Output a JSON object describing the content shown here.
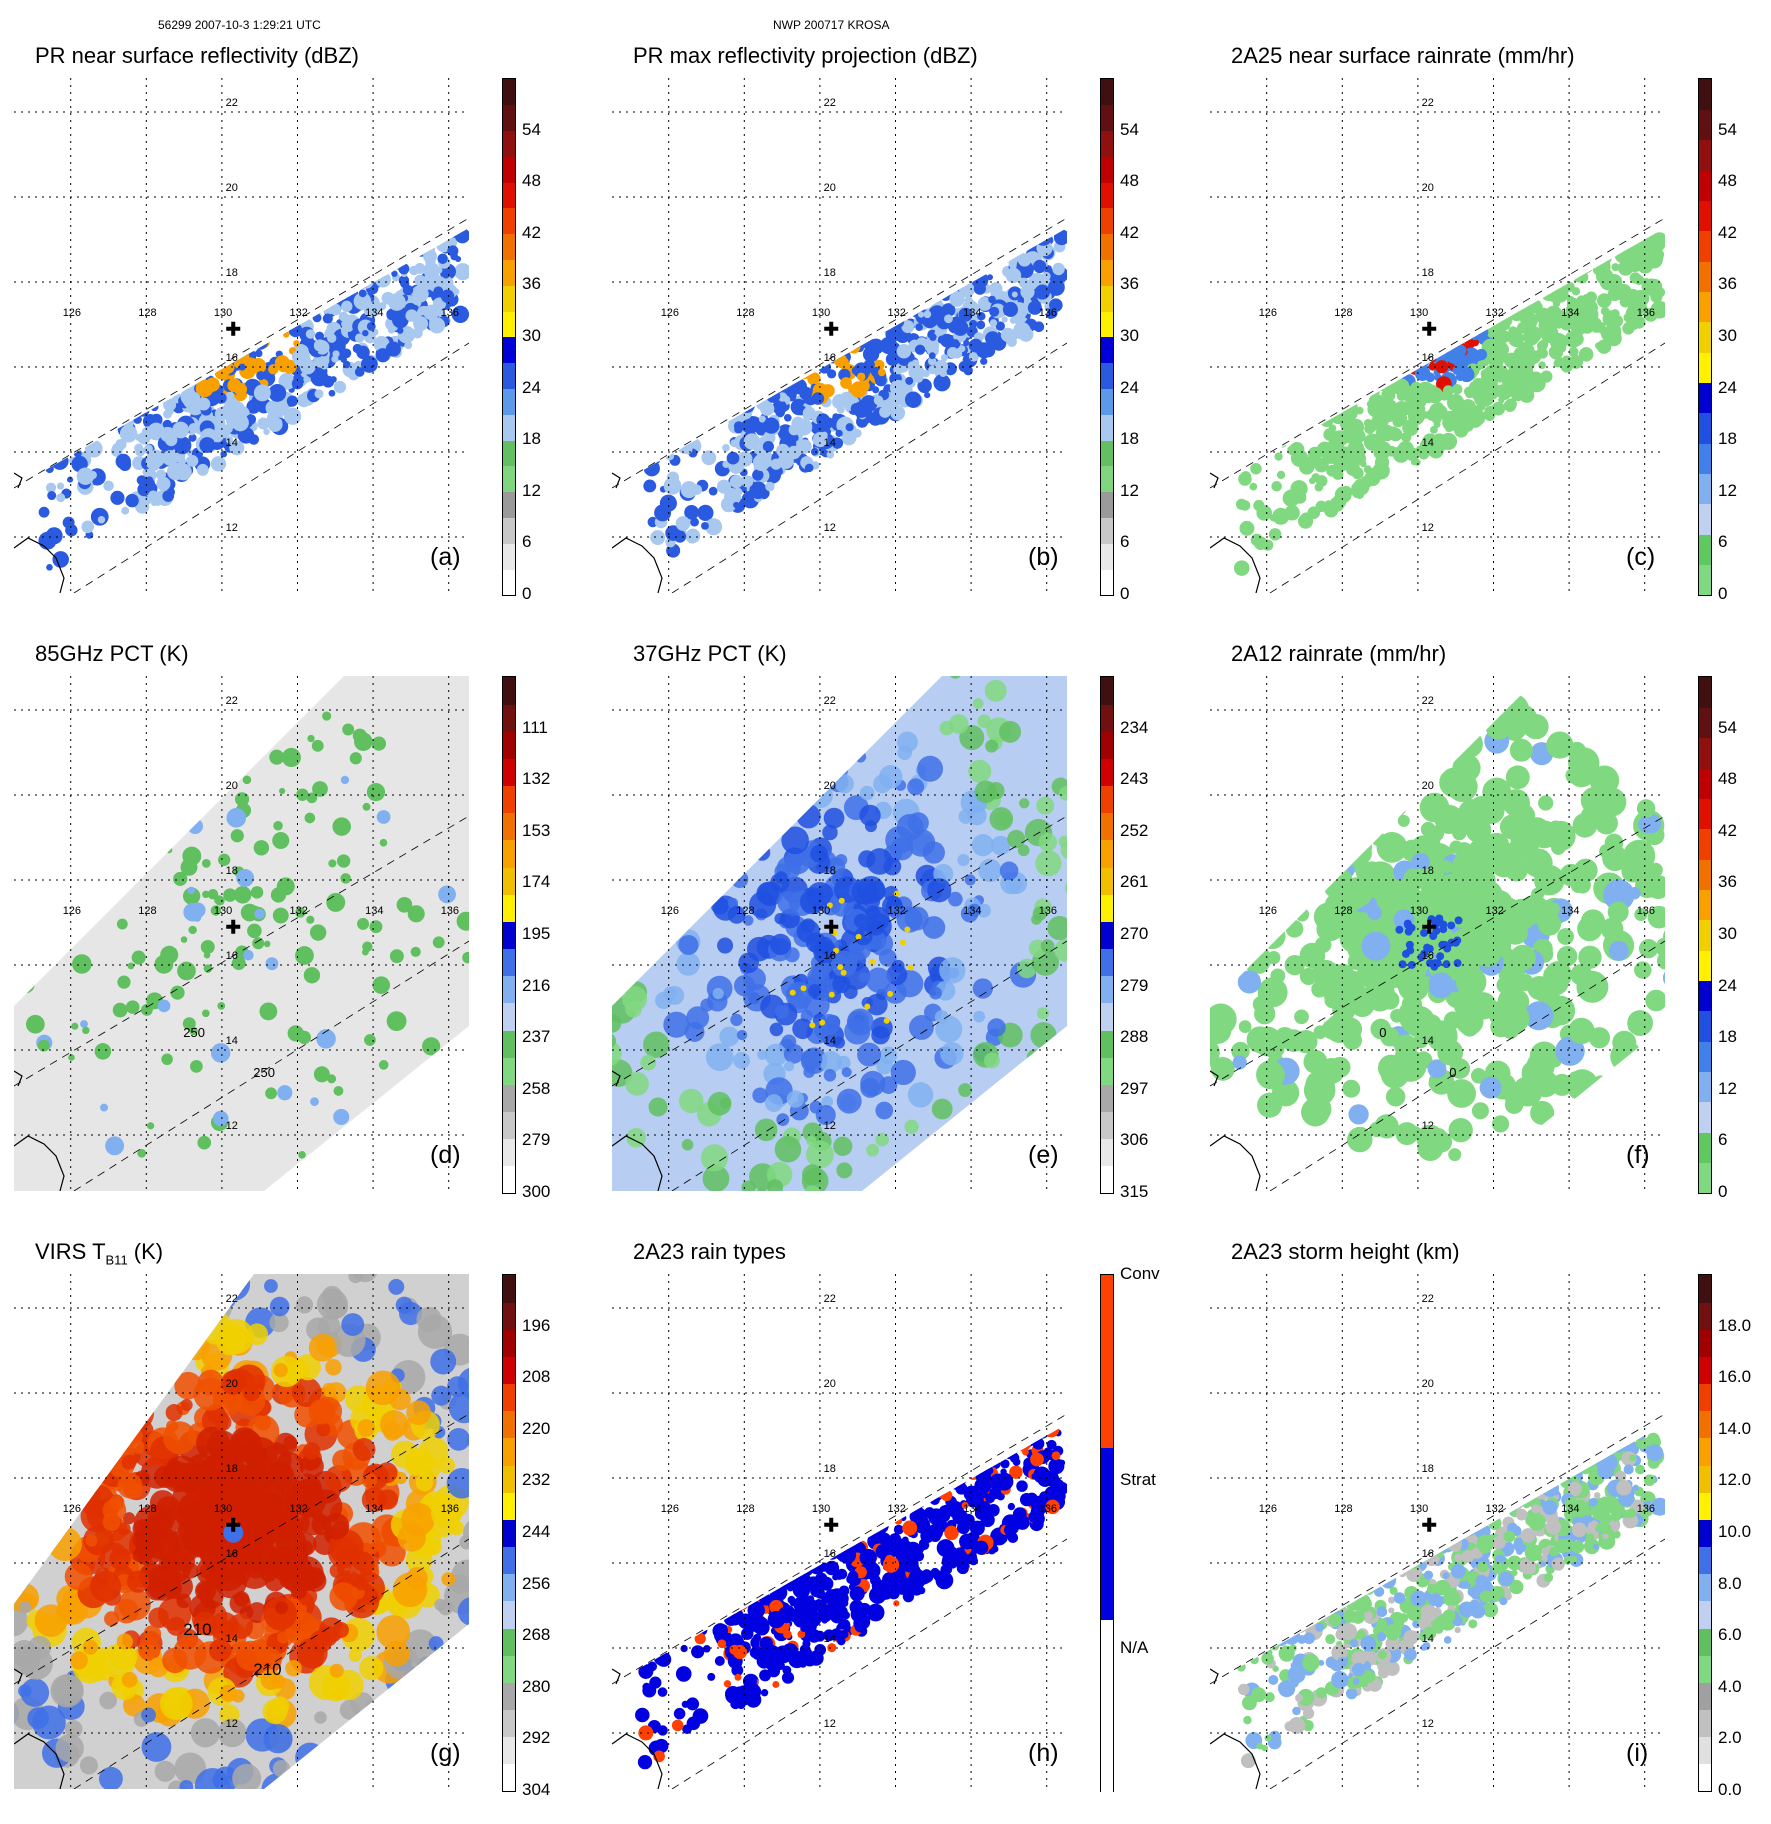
{
  "header": {
    "left": "56299 2007-10-3 1:29:21 UTC",
    "center": "NWP 200717 KROSA"
  },
  "lon_labels": [
    "126",
    "128",
    "130",
    "132",
    "134",
    "136"
  ],
  "lat_labels": [
    "22",
    "20",
    "18",
    "16",
    "14",
    "12"
  ],
  "panels": [
    {
      "key": "a",
      "title": "PR near surface reflectivity (dBZ)",
      "label": "(a)",
      "scale": "dbz",
      "swath": "narrow",
      "ticks": [
        "0",
        "6",
        "12",
        "18",
        "24",
        "30",
        "36",
        "42",
        "48",
        "54"
      ]
    },
    {
      "key": "b",
      "title": "PR max reflectivity projection (dBZ)",
      "label": "(b)",
      "scale": "dbz",
      "swath": "narrow",
      "ticks": [
        "0",
        "6",
        "12",
        "18",
        "24",
        "30",
        "36",
        "42",
        "48",
        "54"
      ]
    },
    {
      "key": "c",
      "title": "2A25 near surface rainrate (mm/hr)",
      "label": "(c)",
      "scale": "rain",
      "swath": "narrow",
      "ticks": [
        "0",
        "6",
        "12",
        "18",
        "24",
        "30",
        "36",
        "42",
        "48",
        "54"
      ]
    },
    {
      "key": "d",
      "title": "85GHz PCT (K)",
      "label": "(d)",
      "scale": "pct85",
      "swath": "wide",
      "ticks": [
        "300",
        "279",
        "258",
        "237",
        "216",
        "195",
        "174",
        "153",
        "132",
        "111"
      ],
      "contours": [
        "250",
        "250"
      ]
    },
    {
      "key": "e",
      "title": "37GHz PCT (K)",
      "label": "(e)",
      "scale": "pct37",
      "swath": "wide",
      "ticks": [
        "315",
        "306",
        "297",
        "288",
        "279",
        "270",
        "261",
        "252",
        "243",
        "234"
      ]
    },
    {
      "key": "f",
      "title": "2A12 rainrate (mm/hr)",
      "label": "(f)",
      "scale": "rain",
      "swath": "wide",
      "ticks": [
        "0",
        "6",
        "12",
        "18",
        "24",
        "30",
        "36",
        "42",
        "48",
        "54"
      ],
      "contours": [
        "0",
        "0"
      ]
    },
    {
      "key": "g",
      "title_main": "VIRS T",
      "title_sub": "B11",
      "title_unit": " (K)",
      "label": "(g)",
      "scale": "virs",
      "swath": "full",
      "ticks": [
        "304",
        "292",
        "280",
        "268",
        "256",
        "244",
        "232",
        "220",
        "208",
        "196"
      ],
      "contours": [
        "210",
        "210"
      ]
    },
    {
      "key": "h",
      "title": "2A23 rain types",
      "label": "(h)",
      "scale": "types",
      "swath": "narrow",
      "ticks": [
        "N/A",
        "Strat",
        "Conv"
      ]
    },
    {
      "key": "i",
      "title": "2A23 storm height (km)",
      "label": "(i)",
      "scale": "height",
      "swath": "narrow",
      "ticks": [
        "0.0",
        "2.0",
        "4.0",
        "6.0",
        "8.0",
        "10.0",
        "12.0",
        "14.0",
        "16.0",
        "18.0"
      ]
    }
  ],
  "colors": {
    "dbz": [
      "#ffffff",
      "#e8e8e8",
      "#c8c8c8",
      "#9a9a9a",
      "#7fd67f",
      "#62c062",
      "#a8c8f0",
      "#5a9ae8",
      "#2a5ae0",
      "#0000d8",
      "#fff000",
      "#f0d000",
      "#f8a000",
      "#f07000",
      "#f04000",
      "#e01000",
      "#c00000",
      "#901010",
      "#601010",
      "#401010"
    ],
    "rain": [
      "#80d880",
      "#60c860",
      "#c0d0f0",
      "#80b0f0",
      "#4080e8",
      "#2050e0",
      "#0000d0",
      "#fff000",
      "#f0d000",
      "#f8a000",
      "#f07000",
      "#f04000",
      "#e01000",
      "#c00000",
      "#901010",
      "#601010",
      "#401010"
    ],
    "pct85": [
      "#ffffff",
      "#e8e8e8",
      "#c8c8c8",
      "#a8a8a8",
      "#80d880",
      "#60c060",
      "#c0d0f0",
      "#80b0f0",
      "#4070e8",
      "#0000d0",
      "#fff000",
      "#f0c000",
      "#f8a000",
      "#f07000",
      "#f04000",
      "#d00000",
      "#a00000",
      "#701010",
      "#401010"
    ],
    "pct37": [
      "#ffffff",
      "#e8e8e8",
      "#c8c8c8",
      "#a8a8a8",
      "#80d880",
      "#60c060",
      "#c0d0f0",
      "#80b0f0",
      "#4070e8",
      "#0000d0",
      "#fff000",
      "#f0c000",
      "#f8a000",
      "#f07000",
      "#f04000",
      "#d00000",
      "#a00000",
      "#701010",
      "#401010"
    ],
    "virs": [
      "#ffffff",
      "#e8e8e8",
      "#c8c8c8",
      "#a8a8a8",
      "#80d880",
      "#60c060",
      "#c0d0f0",
      "#80b0f0",
      "#4070e8",
      "#0000d0",
      "#fff000",
      "#f0c000",
      "#f8a000",
      "#f07000",
      "#f04000",
      "#d00000",
      "#a00000",
      "#701010",
      "#401010"
    ],
    "height": [
      "#ffffff",
      "#e0e0e0",
      "#c0c0c0",
      "#a0a0a0",
      "#80d880",
      "#60c060",
      "#c0d0f0",
      "#80b0f0",
      "#4070e8",
      "#0000d0",
      "#fff000",
      "#f0c000",
      "#f8a000",
      "#f07000",
      "#f04000",
      "#d00000",
      "#a00000",
      "#701010",
      "#401010"
    ],
    "types": [
      "#ffffff",
      "#0000e0",
      "#ff4000"
    ],
    "storm_gray": "#d8d8d8",
    "land_line": "#000000"
  }
}
